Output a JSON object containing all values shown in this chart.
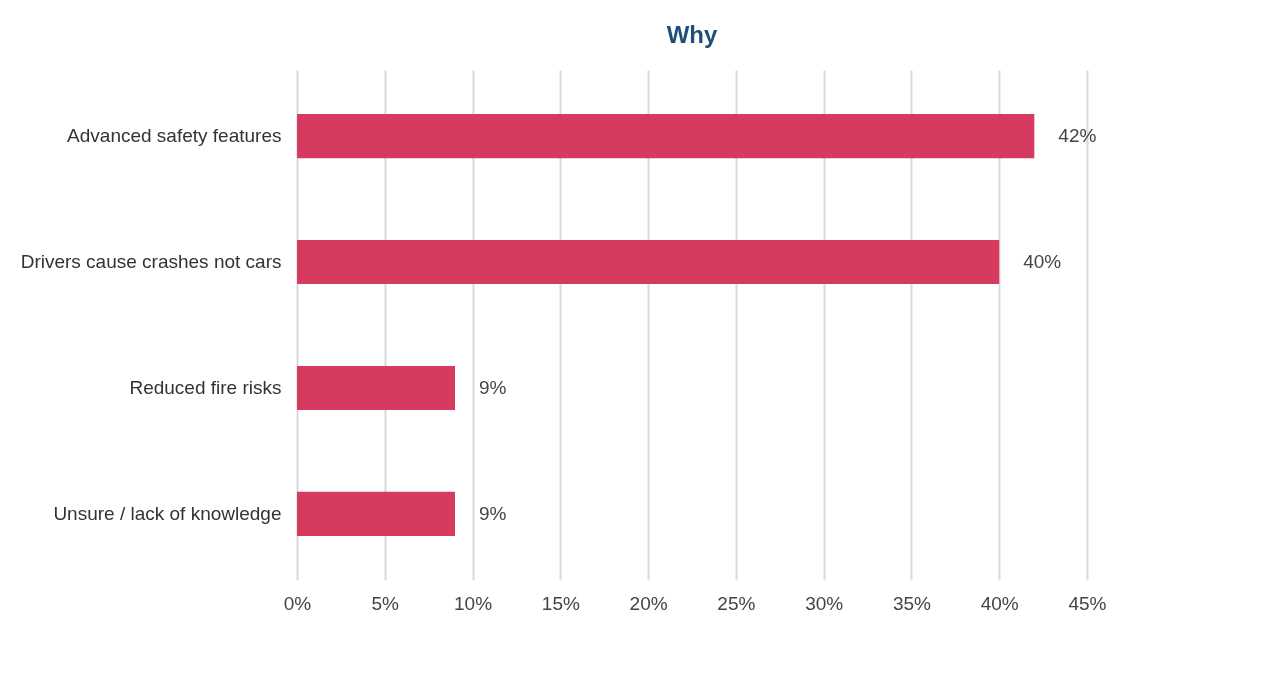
{
  "chart_data": {
    "type": "bar",
    "orientation": "horizontal",
    "title": "Why",
    "categories": [
      "Advanced safety features",
      "Drivers cause crashes not cars",
      "Reduced fire risks",
      "Unsure / lack of knowledge"
    ],
    "values": [
      42,
      40,
      9,
      9
    ],
    "value_labels": [
      "42%",
      "40%",
      "9%",
      "9%"
    ],
    "color": "#d63a5f",
    "xlim": [
      0,
      45
    ],
    "xticks": [
      {
        "value": 0,
        "label": "0%"
      },
      {
        "value": 5,
        "label": "5%"
      },
      {
        "value": 10,
        "label": "10%"
      },
      {
        "value": 15,
        "label": "15%"
      },
      {
        "value": 20,
        "label": "20%"
      },
      {
        "value": 25,
        "label": "25%"
      },
      {
        "value": 30,
        "label": "30%"
      },
      {
        "value": 35,
        "label": "35%"
      },
      {
        "value": 40,
        "label": "40%"
      },
      {
        "value": 45,
        "label": "45%"
      }
    ],
    "grid": "x"
  }
}
